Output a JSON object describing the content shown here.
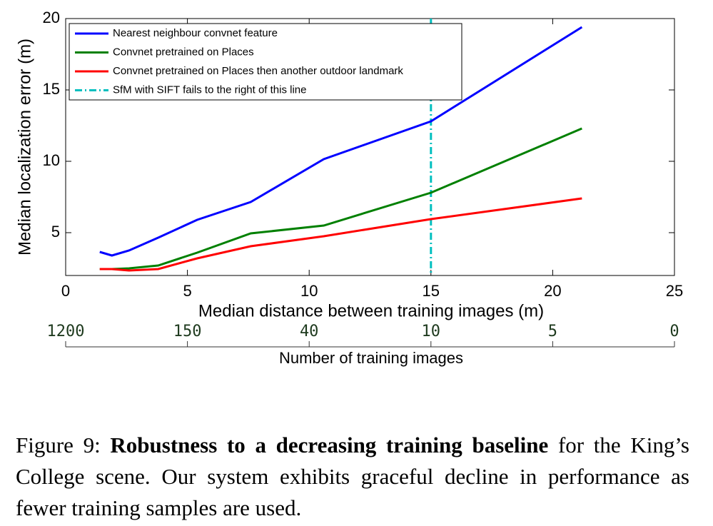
{
  "chart_data": {
    "type": "line",
    "x_label": "Median distance between training images (m)",
    "y_label": "Median localization error (m)",
    "x": [
      1.4,
      1.9,
      2.6,
      3.8,
      5.4,
      7.6,
      10.6,
      15,
      21.2
    ],
    "series": [
      {
        "name": "Nearest neighbour convnet feature",
        "color": "#0000ff",
        "values": [
          3.65,
          3.4,
          3.75,
          4.65,
          5.9,
          7.15,
          10.15,
          12.8,
          19.4
        ]
      },
      {
        "name": "Convnet pretrained on Places",
        "color": "#008000",
        "values": [
          2.45,
          2.45,
          2.5,
          2.7,
          3.6,
          4.95,
          5.5,
          7.8,
          12.3
        ]
      },
      {
        "name": "Convnet pretrained on Places then another outdoor landmark",
        "color": "#ff0000",
        "values": [
          2.45,
          2.45,
          2.35,
          2.45,
          3.2,
          4.05,
          4.75,
          5.95,
          7.4
        ]
      }
    ],
    "reference_line": {
      "name": "SfM with SIFT fails to the right of this line",
      "color": "#00bfbf",
      "x": 15
    },
    "xlim": [
      0,
      25
    ],
    "xticks": [
      0,
      5,
      10,
      15,
      20,
      25
    ],
    "ylim": [
      2,
      20
    ],
    "yticks": [
      5,
      10,
      15,
      20
    ],
    "legend": "upper-left",
    "secondary_x_axis": {
      "label": "Number of training images",
      "ticks": [
        1200,
        150,
        40,
        10,
        5,
        0
      ]
    }
  },
  "caption": {
    "label": "Figure 9:",
    "bold": "Robustness to a decreasing training baseline",
    "text": "for the King’s College scene. Our system exhibits graceful decline in performance as fewer training samples are used."
  }
}
